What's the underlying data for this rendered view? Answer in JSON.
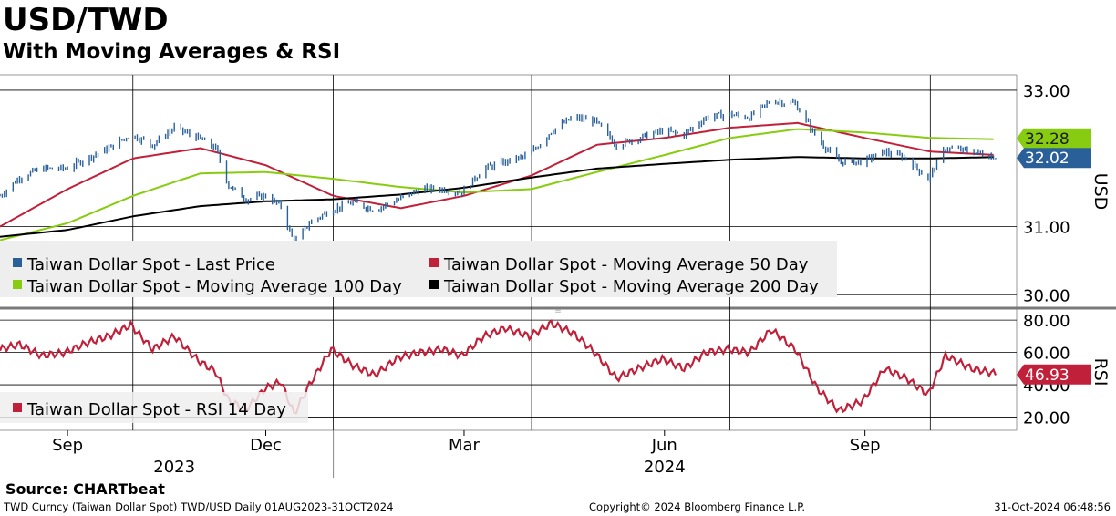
{
  "header": {
    "title": "USD/TWD",
    "subtitle": "With Moving Averages & RSI"
  },
  "source": "Source: CHARTbeat",
  "footer": {
    "left": "TWD Curncy (Taiwan Dollar Spot) TWD/USD  Daily 01AUG2023-31OCT2024",
    "middle": "Copyright© 2024 Bloomberg Finance L.P.",
    "right": "31-Oct-2024 06:48:56"
  },
  "colors": {
    "price": "#2a6099",
    "ma50": "#c0203a",
    "ma100": "#88cc11",
    "ma200": "#000000",
    "rsi": "#c0203a",
    "legend_bg": "#eeeeee"
  },
  "chart_data": [
    {
      "type": "line",
      "panel": "price",
      "ylabel": "USD",
      "ylim": [
        29.87,
        33.2
      ],
      "yticks": [
        {
          "value": 30.0,
          "label": "30.00"
        },
        {
          "value": 31.0,
          "label": "31.00"
        },
        {
          "value": 33.0,
          "label": "33.00"
        }
      ],
      "x_range": [
        "2023-08-01",
        "2024-10-31"
      ],
      "grid": true,
      "legend_position": "bottom-left",
      "last_value_tags": [
        {
          "series": "ma100",
          "label": "32.28",
          "value": 32.28
        },
        {
          "series": "price",
          "label": "32.02",
          "value": 32.02
        }
      ],
      "legend": [
        {
          "key": "price",
          "label": "Taiwan Dollar Spot - Last Price"
        },
        {
          "key": "ma50",
          "label": "Taiwan Dollar Spot - Moving Average 50 Day"
        },
        {
          "key": "ma100",
          "label": "Taiwan Dollar Spot - Moving Average 100 Day"
        },
        {
          "key": "ma200",
          "label": "Taiwan Dollar Spot - Moving Average 200 Day"
        }
      ],
      "series": [
        {
          "key": "price",
          "style": "bars",
          "points": [
            [
              "2023-08-01",
              31.45
            ],
            [
              "2023-08-10",
              31.72
            ],
            [
              "2023-08-20",
              31.85
            ],
            [
              "2023-08-31",
              31.85
            ],
            [
              "2023-09-10",
              32.0
            ],
            [
              "2023-09-20",
              32.15
            ],
            [
              "2023-09-30",
              32.35
            ],
            [
              "2023-10-10",
              32.2
            ],
            [
              "2023-10-20",
              32.45
            ],
            [
              "2023-10-31",
              32.3
            ],
            [
              "2023-11-08",
              32.15
            ],
            [
              "2023-11-14",
              31.6
            ],
            [
              "2023-11-22",
              31.4
            ],
            [
              "2023-12-01",
              31.45
            ],
            [
              "2023-12-08",
              31.3
            ],
            [
              "2023-12-14",
              30.75
            ],
            [
              "2023-12-21",
              31.05
            ],
            [
              "2023-12-31",
              31.25
            ],
            [
              "2024-01-10",
              31.35
            ],
            [
              "2024-01-20",
              31.25
            ],
            [
              "2024-01-31",
              31.4
            ],
            [
              "2024-02-10",
              31.55
            ],
            [
              "2024-02-20",
              31.55
            ],
            [
              "2024-02-29",
              31.5
            ],
            [
              "2024-03-10",
              31.85
            ],
            [
              "2024-03-20",
              31.95
            ],
            [
              "2024-03-31",
              32.05
            ],
            [
              "2024-04-10",
              32.4
            ],
            [
              "2024-04-20",
              32.6
            ],
            [
              "2024-04-30",
              32.55
            ],
            [
              "2024-05-10",
              32.2
            ],
            [
              "2024-05-20",
              32.3
            ],
            [
              "2024-05-31",
              32.4
            ],
            [
              "2024-06-10",
              32.35
            ],
            [
              "2024-06-20",
              32.6
            ],
            [
              "2024-06-30",
              32.65
            ],
            [
              "2024-07-10",
              32.6
            ],
            [
              "2024-07-20",
              32.85
            ],
            [
              "2024-07-31",
              32.8
            ],
            [
              "2024-08-10",
              32.3
            ],
            [
              "2024-08-20",
              31.95
            ],
            [
              "2024-08-31",
              31.95
            ],
            [
              "2024-09-10",
              32.1
            ],
            [
              "2024-09-20",
              32.0
            ],
            [
              "2024-09-30",
              31.7
            ],
            [
              "2024-10-08",
              32.15
            ],
            [
              "2024-10-20",
              32.1
            ],
            [
              "2024-10-31",
              32.02
            ]
          ]
        },
        {
          "key": "ma50",
          "style": "line",
          "points": [
            [
              "2023-08-01",
              31.0
            ],
            [
              "2023-09-01",
              31.55
            ],
            [
              "2023-10-01",
              32.0
            ],
            [
              "2023-11-01",
              32.15
            ],
            [
              "2023-12-01",
              31.9
            ],
            [
              "2024-01-01",
              31.45
            ],
            [
              "2024-02-01",
              31.27
            ],
            [
              "2024-03-01",
              31.45
            ],
            [
              "2024-04-01",
              31.75
            ],
            [
              "2024-05-01",
              32.2
            ],
            [
              "2024-06-01",
              32.3
            ],
            [
              "2024-07-01",
              32.45
            ],
            [
              "2024-08-01",
              32.52
            ],
            [
              "2024-09-01",
              32.3
            ],
            [
              "2024-10-01",
              32.1
            ],
            [
              "2024-10-31",
              32.05
            ]
          ]
        },
        {
          "key": "ma100",
          "style": "line",
          "points": [
            [
              "2023-08-01",
              30.8
            ],
            [
              "2023-09-01",
              31.05
            ],
            [
              "2023-10-01",
              31.45
            ],
            [
              "2023-11-01",
              31.78
            ],
            [
              "2023-12-01",
              31.8
            ],
            [
              "2024-01-01",
              31.7
            ],
            [
              "2024-02-01",
              31.58
            ],
            [
              "2024-03-01",
              31.5
            ],
            [
              "2024-04-01",
              31.55
            ],
            [
              "2024-05-01",
              31.8
            ],
            [
              "2024-06-01",
              32.05
            ],
            [
              "2024-07-01",
              32.3
            ],
            [
              "2024-08-01",
              32.43
            ],
            [
              "2024-09-01",
              32.38
            ],
            [
              "2024-10-01",
              32.3
            ],
            [
              "2024-10-31",
              32.28
            ]
          ]
        },
        {
          "key": "ma200",
          "style": "line",
          "points": [
            [
              "2023-08-01",
              30.85
            ],
            [
              "2023-09-01",
              30.95
            ],
            [
              "2023-10-01",
              31.15
            ],
            [
              "2023-11-01",
              31.3
            ],
            [
              "2023-12-01",
              31.37
            ],
            [
              "2024-01-01",
              31.4
            ],
            [
              "2024-02-01",
              31.47
            ],
            [
              "2024-03-01",
              31.57
            ],
            [
              "2024-04-01",
              31.72
            ],
            [
              "2024-05-01",
              31.85
            ],
            [
              "2024-06-01",
              31.92
            ],
            [
              "2024-07-01",
              31.98
            ],
            [
              "2024-08-01",
              32.02
            ],
            [
              "2024-09-01",
              32.0
            ],
            [
              "2024-10-01",
              32.0
            ],
            [
              "2024-10-31",
              32.02
            ]
          ]
        }
      ]
    },
    {
      "type": "line",
      "panel": "rsi",
      "ylabel": "RSI",
      "ylim": [
        13,
        84
      ],
      "yticks": [
        {
          "value": 20,
          "label": "20.00"
        },
        {
          "value": 40,
          "label": "40.00"
        },
        {
          "value": 60,
          "label": "60.00"
        },
        {
          "value": 80,
          "label": "80.00"
        }
      ],
      "last_value_tags": [
        {
          "series": "rsi",
          "label": "46.93",
          "value": 46.93
        }
      ],
      "legend": [
        {
          "key": "rsi",
          "label": "Taiwan Dollar Spot - RSI 14 Day"
        }
      ],
      "series": [
        {
          "key": "rsi",
          "points": [
            [
              "2023-08-01",
              62
            ],
            [
              "2023-08-10",
              65
            ],
            [
              "2023-08-20",
              58
            ],
            [
              "2023-08-31",
              60
            ],
            [
              "2023-09-10",
              66
            ],
            [
              "2023-09-20",
              70
            ],
            [
              "2023-09-30",
              77
            ],
            [
              "2023-10-10",
              62
            ],
            [
              "2023-10-20",
              70
            ],
            [
              "2023-10-31",
              55
            ],
            [
              "2023-11-08",
              48
            ],
            [
              "2023-11-14",
              30
            ],
            [
              "2023-11-22",
              25
            ],
            [
              "2023-12-01",
              38
            ],
            [
              "2023-12-08",
              42
            ],
            [
              "2023-12-14",
              22
            ],
            [
              "2023-12-21",
              40
            ],
            [
              "2023-12-31",
              62
            ],
            [
              "2024-01-10",
              52
            ],
            [
              "2024-01-20",
              46
            ],
            [
              "2024-01-31",
              57
            ],
            [
              "2024-02-10",
              60
            ],
            [
              "2024-02-20",
              62
            ],
            [
              "2024-02-29",
              58
            ],
            [
              "2024-03-10",
              70
            ],
            [
              "2024-03-20",
              75
            ],
            [
              "2024-03-31",
              70
            ],
            [
              "2024-04-10",
              78
            ],
            [
              "2024-04-20",
              72
            ],
            [
              "2024-04-30",
              60
            ],
            [
              "2024-05-10",
              44
            ],
            [
              "2024-05-20",
              50
            ],
            [
              "2024-05-31",
              56
            ],
            [
              "2024-06-10",
              50
            ],
            [
              "2024-06-20",
              60
            ],
            [
              "2024-06-30",
              62
            ],
            [
              "2024-07-10",
              60
            ],
            [
              "2024-07-20",
              74
            ],
            [
              "2024-07-31",
              62
            ],
            [
              "2024-08-10",
              38
            ],
            [
              "2024-08-20",
              24
            ],
            [
              "2024-08-31",
              30
            ],
            [
              "2024-09-10",
              50
            ],
            [
              "2024-09-20",
              44
            ],
            [
              "2024-09-30",
              34
            ],
            [
              "2024-10-08",
              58
            ],
            [
              "2024-10-20",
              50
            ],
            [
              "2024-10-31",
              46.93
            ]
          ]
        }
      ]
    }
  ],
  "x_axis": {
    "ticks": [
      {
        "date": "2023-09-01",
        "label": "Sep"
      },
      {
        "date": "2023-12-01",
        "label": "Dec"
      },
      {
        "date": "2024-03-01",
        "label": "Mar"
      },
      {
        "date": "2024-06-01",
        "label": "Jun"
      },
      {
        "date": "2024-09-01",
        "label": "Sep"
      }
    ],
    "years": [
      {
        "date": "2023-10-20",
        "label": "2023"
      },
      {
        "date": "2024-06-01",
        "label": "2024"
      }
    ],
    "year_divider": "2024-01-01",
    "gridlines": [
      "2023-10-01",
      "2024-01-01",
      "2024-04-01",
      "2024-07-01",
      "2024-10-01"
    ]
  }
}
